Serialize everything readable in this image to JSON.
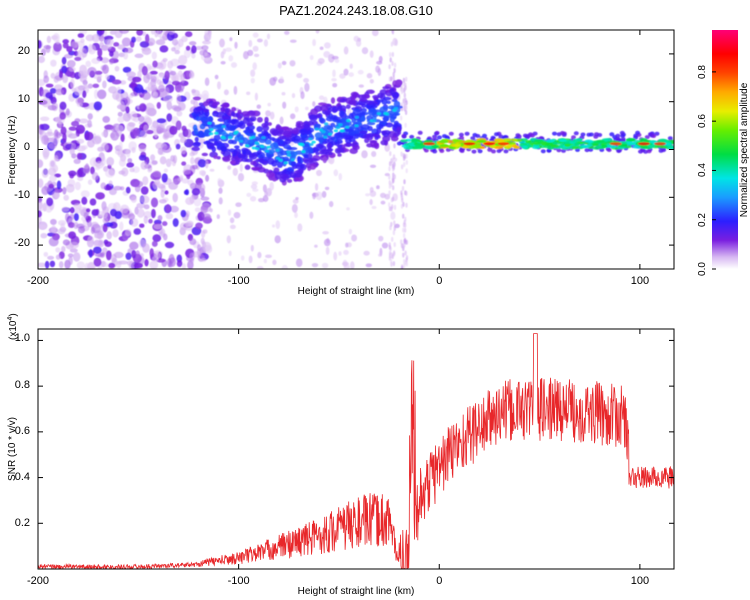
{
  "title": "PAZ1.2024.243.18.08.G10",
  "spectrogram": {
    "xlabel": "Height of straight line (km)",
    "ylabel": "Frequency (Hz)",
    "xlim": [
      -200,
      117
    ],
    "ylim": [
      -25,
      25
    ],
    "xticks": [
      "-200",
      "-100",
      "0",
      "100"
    ],
    "yticks": [
      "20",
      "10",
      "0",
      "-10",
      "-20"
    ]
  },
  "colorbar": {
    "label": "Normalized spectral amplitude",
    "ticks": [
      "0.0",
      "0.2",
      "0.4",
      "0.6",
      "0.8"
    ],
    "range": [
      0,
      0.97
    ]
  },
  "snr": {
    "ylabel": "SNR (10 * v/v)",
    "multiplier": "(x10",
    "multiplier_exp": "4",
    "multiplier_close": ")",
    "xlabel": "Height of straight line (km)",
    "xticks": [
      "-200",
      "-100",
      "0",
      "100"
    ],
    "yticks": [
      "1.0",
      "0.8",
      "0.6",
      "0.4",
      "0.2"
    ],
    "line_color": "#e8272a"
  },
  "chart_data": [
    {
      "type": "heatmap",
      "title": "PAZ1.2024.243.18.08.G10",
      "xlabel": "Height of straight line (km)",
      "ylabel": "Frequency (Hz)",
      "xlim": [
        -200,
        117
      ],
      "ylim": [
        -25,
        25
      ],
      "colorbar_label": "Normalized spectral amplitude",
      "features": [
        {
          "x_range": [
            -200,
            -120
          ],
          "freq_range": [
            -25,
            25
          ],
          "amplitude": "0.05-0.15 scattered noise"
        },
        {
          "x_range": [
            -120,
            -20
          ],
          "freq_center": [
            3,
            8
          ],
          "amplitude": "0.1-0.3 wandering signal"
        },
        {
          "x_range": [
            -20,
            117
          ],
          "freq": 1.5,
          "amplitude": "0.4-0.95 stable signal"
        }
      ]
    },
    {
      "type": "line",
      "xlabel": "Height of straight line (km)",
      "ylabel": "SNR (10 * v/v)",
      "xlim": [
        -200,
        117
      ],
      "ylim": [
        0,
        1.05
      ],
      "y_multiplier": "x10^4",
      "envelope": {
        "x": [
          -200,
          -150,
          -120,
          -100,
          -80,
          -60,
          -40,
          -25,
          -20,
          -15,
          -10,
          -5,
          0,
          10,
          20,
          30,
          40,
          50,
          60,
          70,
          80,
          93,
          95,
          117
        ],
        "y": [
          0.01,
          0.01,
          0.02,
          0.04,
          0.08,
          0.12,
          0.17,
          0.18,
          0.02,
          0.05,
          0.3,
          0.38,
          0.45,
          0.55,
          0.62,
          0.68,
          0.7,
          0.7,
          0.7,
          0.69,
          0.68,
          0.66,
          0.4,
          0.4
        ]
      }
    }
  ]
}
